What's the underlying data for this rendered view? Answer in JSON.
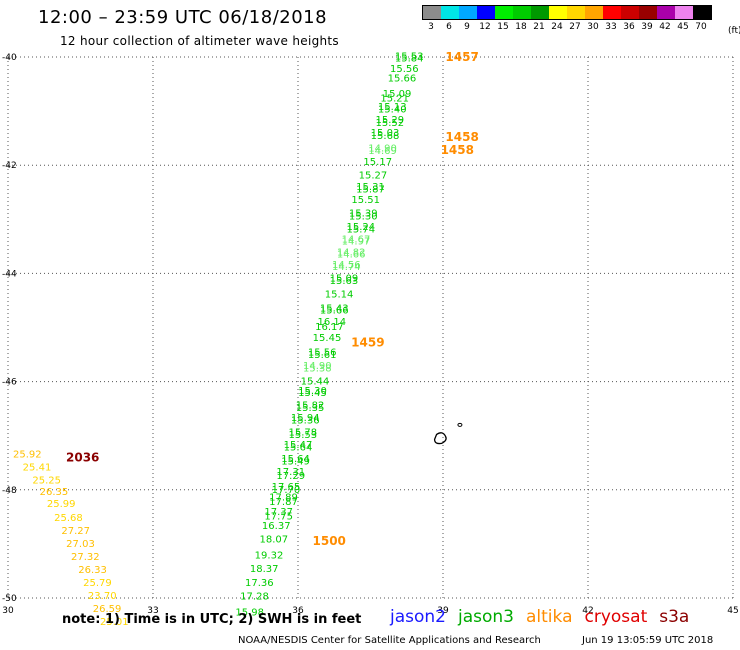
{
  "header": {
    "title": "12:00 – 23:59 UTC 06/18/2018",
    "subtitle": "12 hour collection of altimeter wave heights"
  },
  "legend": {
    "labels": [
      "3",
      "6",
      "9",
      "12",
      "15",
      "18",
      "21",
      "24",
      "27",
      "30",
      "33",
      "36",
      "39",
      "42",
      "45",
      "70"
    ],
    "unit": "(ft)",
    "colors": [
      "#8c8c8c",
      "#00e6e6",
      "#00a8ff",
      "#0000ff",
      "#00ee00",
      "#00cc00",
      "#009900",
      "#ffff00",
      "#ffd700",
      "#ffa500",
      "#ff0000",
      "#cc0000",
      "#990000",
      "#aa00aa",
      "#ee82ee",
      "#000000"
    ]
  },
  "map": {
    "lon_ticks": [
      "30",
      "33",
      "36",
      "39",
      "42",
      "45"
    ],
    "lat_ticks": [
      "-40",
      "-42",
      "-44",
      "-46",
      "-48",
      "-50"
    ],
    "lon_range": [
      30,
      45
    ],
    "lat_range": [
      -40,
      -50
    ],
    "grid": "dotted"
  },
  "chart_data": {
    "type": "scatter",
    "track_jason3": [
      {
        "lat": -40.05,
        "lon": 38.3,
        "v": "15.53",
        "c": "#00cc00"
      },
      {
        "lat": -40.08,
        "lon": 38.3,
        "v": "15.84",
        "c": "#00cc00"
      },
      {
        "lat": -40.28,
        "lon": 38.2,
        "v": "15.56",
        "c": "#00cc00"
      },
      {
        "lat": -40.45,
        "lon": 38.15,
        "v": "15.66",
        "c": "#00cc00"
      },
      {
        "lat": -40.74,
        "lon": 38.05,
        "v": "15.09",
        "c": "#00cc00"
      },
      {
        "lat": -40.82,
        "lon": 38.0,
        "v": "15.21",
        "c": "#00cc00"
      },
      {
        "lat": -40.98,
        "lon": 37.95,
        "v": "15.13",
        "c": "#00cc00"
      },
      {
        "lat": -41.03,
        "lon": 37.95,
        "v": "15.40",
        "c": "#00cc00"
      },
      {
        "lat": -41.22,
        "lon": 37.9,
        "v": "15.29",
        "c": "#00cc00"
      },
      {
        "lat": -41.28,
        "lon": 37.9,
        "v": "15.52",
        "c": "#00cc00"
      },
      {
        "lat": -41.46,
        "lon": 37.8,
        "v": "15.03",
        "c": "#00cc00"
      },
      {
        "lat": -41.52,
        "lon": 37.8,
        "v": "15.68",
        "c": "#00cc00"
      },
      {
        "lat": -41.75,
        "lon": 37.75,
        "v": "14.90",
        "c": "#66ee66"
      },
      {
        "lat": -41.79,
        "lon": 37.75,
        "v": "14.69",
        "c": "#66ee66"
      },
      {
        "lat": -42.0,
        "lon": 37.65,
        "v": "15.17",
        "c": "#00cc00"
      },
      {
        "lat": -42.25,
        "lon": 37.55,
        "v": "15.27",
        "c": "#00cc00"
      },
      {
        "lat": -42.46,
        "lon": 37.5,
        "v": "15.31",
        "c": "#00cc00"
      },
      {
        "lat": -42.5,
        "lon": 37.5,
        "v": "15.87",
        "c": "#00cc00"
      },
      {
        "lat": -42.7,
        "lon": 37.4,
        "v": "15.51",
        "c": "#00cc00"
      },
      {
        "lat": -42.95,
        "lon": 37.35,
        "v": "15.39",
        "c": "#00cc00"
      },
      {
        "lat": -43.0,
        "lon": 37.35,
        "v": "15.30",
        "c": "#00cc00"
      },
      {
        "lat": -43.2,
        "lon": 37.3,
        "v": "15.24",
        "c": "#00cc00"
      },
      {
        "lat": -43.24,
        "lon": 37.3,
        "v": "15.74",
        "c": "#00cc00"
      },
      {
        "lat": -43.43,
        "lon": 37.2,
        "v": "14.67",
        "c": "#66ee66"
      },
      {
        "lat": -43.47,
        "lon": 37.2,
        "v": "14.97",
        "c": "#66ee66"
      },
      {
        "lat": -43.67,
        "lon": 37.1,
        "v": "14.82",
        "c": "#66ee66"
      },
      {
        "lat": -43.71,
        "lon": 37.1,
        "v": "14.66",
        "c": "#66ee66"
      },
      {
        "lat": -43.9,
        "lon": 37.0,
        "v": "14.56",
        "c": "#66ee66"
      },
      {
        "lat": -43.94,
        "lon": 37.0,
        "v": "14.74",
        "c": "#66ee66"
      },
      {
        "lat": -44.15,
        "lon": 36.95,
        "v": "15.09",
        "c": "#00cc00"
      },
      {
        "lat": -44.2,
        "lon": 36.95,
        "v": "15.63",
        "c": "#00cc00"
      },
      {
        "lat": -44.45,
        "lon": 36.85,
        "v": "15.14",
        "c": "#00cc00"
      },
      {
        "lat": -44.7,
        "lon": 36.75,
        "v": "15.43",
        "c": "#00cc00"
      },
      {
        "lat": -44.74,
        "lon": 36.75,
        "v": "15.66",
        "c": "#00cc00"
      },
      {
        "lat": -44.95,
        "lon": 36.7,
        "v": "16.14",
        "c": "#00cc00"
      },
      {
        "lat": -45.05,
        "lon": 36.65,
        "v": "16.17",
        "c": "#00cc00"
      },
      {
        "lat": -45.25,
        "lon": 36.6,
        "v": "15.45",
        "c": "#00cc00"
      },
      {
        "lat": -45.52,
        "lon": 36.5,
        "v": "15.56",
        "c": "#00cc00"
      },
      {
        "lat": -45.56,
        "lon": 36.5,
        "v": "15.61",
        "c": "#00cc00"
      },
      {
        "lat": -45.77,
        "lon": 36.4,
        "v": "14.90",
        "c": "#66ee66"
      },
      {
        "lat": -45.81,
        "lon": 36.4,
        "v": "15.38",
        "c": "#66ee66"
      },
      {
        "lat": -46.05,
        "lon": 36.35,
        "v": "15.44",
        "c": "#00cc00"
      },
      {
        "lat": -46.23,
        "lon": 36.3,
        "v": "15.30",
        "c": "#00cc00"
      },
      {
        "lat": -46.27,
        "lon": 36.3,
        "v": "15.45",
        "c": "#00cc00"
      },
      {
        "lat": -46.5,
        "lon": 36.25,
        "v": "15.82",
        "c": "#00cc00"
      },
      {
        "lat": -46.54,
        "lon": 36.25,
        "v": "15.35",
        "c": "#00cc00"
      },
      {
        "lat": -46.73,
        "lon": 36.15,
        "v": "15.94",
        "c": "#00cc00"
      },
      {
        "lat": -46.77,
        "lon": 36.15,
        "v": "15.36",
        "c": "#00cc00"
      },
      {
        "lat": -47.0,
        "lon": 36.1,
        "v": "15.78",
        "c": "#00cc00"
      },
      {
        "lat": -47.04,
        "lon": 36.1,
        "v": "15.53",
        "c": "#00cc00"
      },
      {
        "lat": -47.23,
        "lon": 36.0,
        "v": "15.47",
        "c": "#00cc00"
      },
      {
        "lat": -47.27,
        "lon": 36.0,
        "v": "15.64",
        "c": "#00cc00"
      },
      {
        "lat": -47.49,
        "lon": 35.95,
        "v": "15.64",
        "c": "#00cc00"
      },
      {
        "lat": -47.53,
        "lon": 35.95,
        "v": "15.49",
        "c": "#00cc00"
      },
      {
        "lat": -47.73,
        "lon": 35.85,
        "v": "17.31",
        "c": "#00cc00"
      },
      {
        "lat": -47.8,
        "lon": 35.85,
        "v": "17.29",
        "c": "#00cc00"
      },
      {
        "lat": -48.0,
        "lon": 35.75,
        "v": "17.65",
        "c": "#00cc00"
      },
      {
        "lat": -48.06,
        "lon": 35.75,
        "v": "17.70",
        "c": "#00cc00"
      },
      {
        "lat": -48.2,
        "lon": 35.7,
        "v": "17.89",
        "c": "#00cc00"
      },
      {
        "lat": -48.28,
        "lon": 35.7,
        "v": "17.87",
        "c": "#00cc00"
      },
      {
        "lat": -48.47,
        "lon": 35.6,
        "v": "17.37",
        "c": "#00cc00"
      },
      {
        "lat": -48.55,
        "lon": 35.6,
        "v": "17.75",
        "c": "#00cc00"
      },
      {
        "lat": -48.72,
        "lon": 35.55,
        "v": "16.37",
        "c": "#00cc00"
      },
      {
        "lat": -48.97,
        "lon": 35.5,
        "v": "18.07",
        "c": "#00cc00"
      },
      {
        "lat": -49.27,
        "lon": 35.4,
        "v": "19.32",
        "c": "#00cc00"
      },
      {
        "lat": -49.52,
        "lon": 35.3,
        "v": "18.37",
        "c": "#00cc00"
      },
      {
        "lat": -49.78,
        "lon": 35.2,
        "v": "17.36",
        "c": "#00cc00"
      },
      {
        "lat": -50.03,
        "lon": 35.1,
        "v": "17.28",
        "c": "#00cc00"
      },
      {
        "lat": -50.32,
        "lon": 35.0,
        "v": "15.98",
        "c": "#00cc00"
      }
    ],
    "track_cryosat": [
      {
        "lat": -47.4,
        "lon": 30.4,
        "v": "25.92",
        "c": "#ffbf00"
      },
      {
        "lat": -47.64,
        "lon": 30.6,
        "v": "25.41",
        "c": "#ffd700"
      },
      {
        "lat": -47.88,
        "lon": 30.8,
        "v": "25.25",
        "c": "#ffd700"
      },
      {
        "lat": -48.1,
        "lon": 30.95,
        "v": "26.35",
        "c": "#ffbf00"
      },
      {
        "lat": -48.32,
        "lon": 31.1,
        "v": "25.99",
        "c": "#ffd700"
      },
      {
        "lat": -48.58,
        "lon": 31.25,
        "v": "25.68",
        "c": "#ffd700"
      },
      {
        "lat": -48.82,
        "lon": 31.4,
        "v": "27.27",
        "c": "#ffbf00"
      },
      {
        "lat": -49.06,
        "lon": 31.5,
        "v": "27.03",
        "c": "#ffbf00"
      },
      {
        "lat": -49.3,
        "lon": 31.6,
        "v": "27.32",
        "c": "#ffbf00"
      },
      {
        "lat": -49.54,
        "lon": 31.75,
        "v": "26.33",
        "c": "#ffbf00"
      },
      {
        "lat": -49.78,
        "lon": 31.85,
        "v": "25.79",
        "c": "#ffd700"
      },
      {
        "lat": -50.02,
        "lon": 31.95,
        "v": "23.70",
        "c": "#ffd700"
      },
      {
        "lat": -50.26,
        "lon": 32.05,
        "v": "26.59",
        "c": "#ffbf00"
      },
      {
        "lat": -50.5,
        "lon": 32.2,
        "v": "25.01",
        "c": "#ffd700"
      }
    ],
    "time_labels": [
      {
        "lat": -40.0,
        "lon": 39.05,
        "t": "1457",
        "c": "#ff8c00"
      },
      {
        "lat": -41.48,
        "lon": 39.05,
        "t": "1458",
        "c": "#ff8c00"
      },
      {
        "lat": -41.72,
        "lon": 38.95,
        "t": "1458",
        "c": "#ff8c00"
      },
      {
        "lat": -45.28,
        "lon": 37.1,
        "t": "1459",
        "c": "#ff8c00"
      },
      {
        "lat": -48.95,
        "lon": 36.3,
        "t": "1500",
        "c": "#ff8c00"
      },
      {
        "lat": -47.4,
        "lon": 31.2,
        "t": "2036",
        "c": "#8b0000"
      }
    ],
    "islands": [
      {
        "name": "island-large",
        "lat": -47.05,
        "lon": 38.95
      },
      {
        "name": "island-small",
        "lat": -46.8,
        "lon": 39.35
      }
    ]
  },
  "footer": {
    "note": "note: 1) Time is in UTC; 2) SWH is in feet",
    "missions": [
      {
        "label": "jason2",
        "color": "#1a1aff"
      },
      {
        "label": "jason3",
        "color": "#00aa00"
      },
      {
        "label": "altika",
        "color": "#ff8c00"
      },
      {
        "label": "cryosat",
        "color": "#e00000"
      },
      {
        "label": "s3a",
        "color": "#8b0000"
      }
    ],
    "credit": "NOAA/NESDIS Center for Satellite Applications and Research",
    "timestamp": "Jun 19 13:05:59 UTC 2018"
  }
}
